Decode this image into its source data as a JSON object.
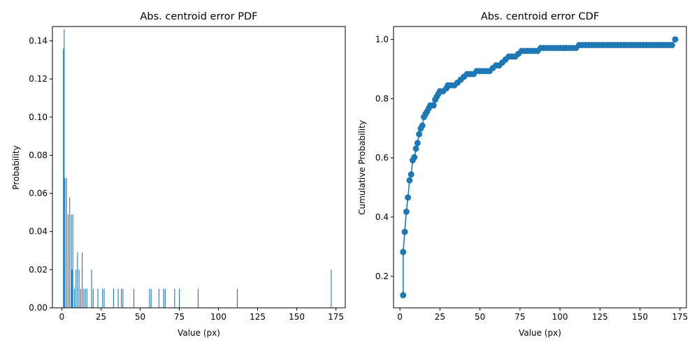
{
  "chart_data": [
    {
      "type": "bar",
      "title": "Abs. centroid error PDF",
      "xlabel": "Value (px)",
      "ylabel": "Probability",
      "xlim": [
        -6,
        181
      ],
      "ylim": [
        0,
        0.1475
      ],
      "xticks": [
        0,
        25,
        50,
        75,
        100,
        125,
        150,
        175
      ],
      "yticks": [
        0.0,
        0.02,
        0.04,
        0.06,
        0.08,
        0.1,
        0.12,
        0.14
      ],
      "ytick_labels": [
        "0.00",
        "0.02",
        "0.04",
        "0.06",
        "0.08",
        "0.10",
        "0.12",
        "0.14"
      ],
      "color": "#1f77b4",
      "bars": [
        {
          "x": 1,
          "y": 0.136
        },
        {
          "x": 1.5,
          "y": 0.146
        },
        {
          "x": 2,
          "y": 0.068
        },
        {
          "x": 3,
          "y": 0.068
        },
        {
          "x": 4,
          "y": 0.049
        },
        {
          "x": 5,
          "y": 0.058
        },
        {
          "x": 6,
          "y": 0.049
        },
        {
          "x": 6.5,
          "y": 0.02
        },
        {
          "x": 7,
          "y": 0.049
        },
        {
          "x": 8,
          "y": 0.01
        },
        {
          "x": 9,
          "y": 0.02
        },
        {
          "x": 10,
          "y": 0.029
        },
        {
          "x": 11,
          "y": 0.02
        },
        {
          "x": 12,
          "y": 0.01
        },
        {
          "x": 13,
          "y": 0.029
        },
        {
          "x": 14,
          "y": 0.01
        },
        {
          "x": 15,
          "y": 0.01
        },
        {
          "x": 16,
          "y": 0.01
        },
        {
          "x": 19,
          "y": 0.02
        },
        {
          "x": 20,
          "y": 0.01
        },
        {
          "x": 23,
          "y": 0.01
        },
        {
          "x": 26,
          "y": 0.01
        },
        {
          "x": 27,
          "y": 0.01
        },
        {
          "x": 33,
          "y": 0.01
        },
        {
          "x": 36,
          "y": 0.01
        },
        {
          "x": 38,
          "y": 0.01
        },
        {
          "x": 39,
          "y": 0.01
        },
        {
          "x": 46,
          "y": 0.01
        },
        {
          "x": 56,
          "y": 0.01
        },
        {
          "x": 57,
          "y": 0.01
        },
        {
          "x": 62,
          "y": 0.01
        },
        {
          "x": 65,
          "y": 0.01
        },
        {
          "x": 66,
          "y": 0.01
        },
        {
          "x": 72,
          "y": 0.01
        },
        {
          "x": 75,
          "y": 0.01
        },
        {
          "x": 87,
          "y": 0.01
        },
        {
          "x": 112,
          "y": 0.01
        },
        {
          "x": 172,
          "y": 0.02
        }
      ]
    },
    {
      "type": "line",
      "title": "Abs. centroid error CDF",
      "xlabel": "Value (px)",
      "ylabel": "Cumulative Probability",
      "xlim": [
        -4,
        179
      ],
      "ylim": [
        0.0935,
        1.0435
      ],
      "xticks": [
        0,
        25,
        50,
        75,
        100,
        125,
        150,
        175
      ],
      "yticks": [
        0.2,
        0.4,
        0.6,
        0.8,
        1.0
      ],
      "ytick_labels": [
        "0.2",
        "0.4",
        "0.6",
        "0.8",
        "1.0"
      ],
      "color": "#1f77b4",
      "marker": "circle",
      "points": [
        {
          "x": 2,
          "y": 0.136
        },
        {
          "x": 2,
          "y": 0.282
        },
        {
          "x": 3,
          "y": 0.35
        },
        {
          "x": 4,
          "y": 0.418
        },
        {
          "x": 5,
          "y": 0.466
        },
        {
          "x": 6,
          "y": 0.524
        },
        {
          "x": 7,
          "y": 0.544
        },
        {
          "x": 8,
          "y": 0.592
        },
        {
          "x": 9,
          "y": 0.602
        },
        {
          "x": 10,
          "y": 0.631
        },
        {
          "x": 11,
          "y": 0.65
        },
        {
          "x": 12,
          "y": 0.68
        },
        {
          "x": 13,
          "y": 0.699
        },
        {
          "x": 14,
          "y": 0.709
        },
        {
          "x": 15,
          "y": 0.738
        },
        {
          "x": 16,
          "y": 0.748
        },
        {
          "x": 17,
          "y": 0.757
        },
        {
          "x": 18,
          "y": 0.767
        },
        {
          "x": 19,
          "y": 0.777
        },
        {
          "x": 21,
          "y": 0.777
        },
        {
          "x": 22,
          "y": 0.796
        },
        {
          "x": 23,
          "y": 0.806
        },
        {
          "x": 24,
          "y": 0.816
        },
        {
          "x": 25,
          "y": 0.825
        },
        {
          "x": 27,
          "y": 0.825
        },
        {
          "x": 29,
          "y": 0.835
        },
        {
          "x": 30,
          "y": 0.845
        },
        {
          "x": 32,
          "y": 0.845
        },
        {
          "x": 34,
          "y": 0.845
        },
        {
          "x": 36,
          "y": 0.854
        },
        {
          "x": 38,
          "y": 0.864
        },
        {
          "x": 40,
          "y": 0.874
        },
        {
          "x": 42,
          "y": 0.883
        },
        {
          "x": 44,
          "y": 0.883
        },
        {
          "x": 46,
          "y": 0.883
        },
        {
          "x": 48,
          "y": 0.893
        },
        {
          "x": 50,
          "y": 0.893
        },
        {
          "x": 52,
          "y": 0.893
        },
        {
          "x": 54,
          "y": 0.893
        },
        {
          "x": 56,
          "y": 0.893
        },
        {
          "x": 58,
          "y": 0.903
        },
        {
          "x": 60,
          "y": 0.912
        },
        {
          "x": 62,
          "y": 0.912
        },
        {
          "x": 64,
          "y": 0.922
        },
        {
          "x": 66,
          "y": 0.932
        },
        {
          "x": 68,
          "y": 0.942
        },
        {
          "x": 70,
          "y": 0.942
        },
        {
          "x": 72,
          "y": 0.942
        },
        {
          "x": 74,
          "y": 0.951
        },
        {
          "x": 76,
          "y": 0.961
        },
        {
          "x": 78,
          "y": 0.961
        },
        {
          "x": 80,
          "y": 0.961
        },
        {
          "x": 82,
          "y": 0.961
        },
        {
          "x": 84,
          "y": 0.961
        },
        {
          "x": 86,
          "y": 0.961
        },
        {
          "x": 88,
          "y": 0.971
        },
        {
          "x": 90,
          "y": 0.971
        },
        {
          "x": 92,
          "y": 0.971
        },
        {
          "x": 94,
          "y": 0.971
        },
        {
          "x": 96,
          "y": 0.971
        },
        {
          "x": 98,
          "y": 0.971
        },
        {
          "x": 100,
          "y": 0.971
        },
        {
          "x": 102,
          "y": 0.971
        },
        {
          "x": 104,
          "y": 0.971
        },
        {
          "x": 106,
          "y": 0.971
        },
        {
          "x": 108,
          "y": 0.971
        },
        {
          "x": 110,
          "y": 0.971
        },
        {
          "x": 112,
          "y": 0.981
        },
        {
          "x": 114,
          "y": 0.981
        },
        {
          "x": 116,
          "y": 0.981
        },
        {
          "x": 118,
          "y": 0.981
        },
        {
          "x": 120,
          "y": 0.981
        },
        {
          "x": 122,
          "y": 0.981
        },
        {
          "x": 124,
          "y": 0.981
        },
        {
          "x": 126,
          "y": 0.981
        },
        {
          "x": 128,
          "y": 0.981
        },
        {
          "x": 130,
          "y": 0.981
        },
        {
          "x": 132,
          "y": 0.981
        },
        {
          "x": 134,
          "y": 0.981
        },
        {
          "x": 136,
          "y": 0.981
        },
        {
          "x": 138,
          "y": 0.981
        },
        {
          "x": 140,
          "y": 0.981
        },
        {
          "x": 142,
          "y": 0.981
        },
        {
          "x": 144,
          "y": 0.981
        },
        {
          "x": 146,
          "y": 0.981
        },
        {
          "x": 148,
          "y": 0.981
        },
        {
          "x": 150,
          "y": 0.981
        },
        {
          "x": 152,
          "y": 0.981
        },
        {
          "x": 154,
          "y": 0.981
        },
        {
          "x": 156,
          "y": 0.981
        },
        {
          "x": 158,
          "y": 0.981
        },
        {
          "x": 160,
          "y": 0.981
        },
        {
          "x": 162,
          "y": 0.981
        },
        {
          "x": 164,
          "y": 0.981
        },
        {
          "x": 166,
          "y": 0.981
        },
        {
          "x": 168,
          "y": 0.981
        },
        {
          "x": 170,
          "y": 0.981
        },
        {
          "x": 172,
          "y": 1.0
        }
      ]
    }
  ]
}
